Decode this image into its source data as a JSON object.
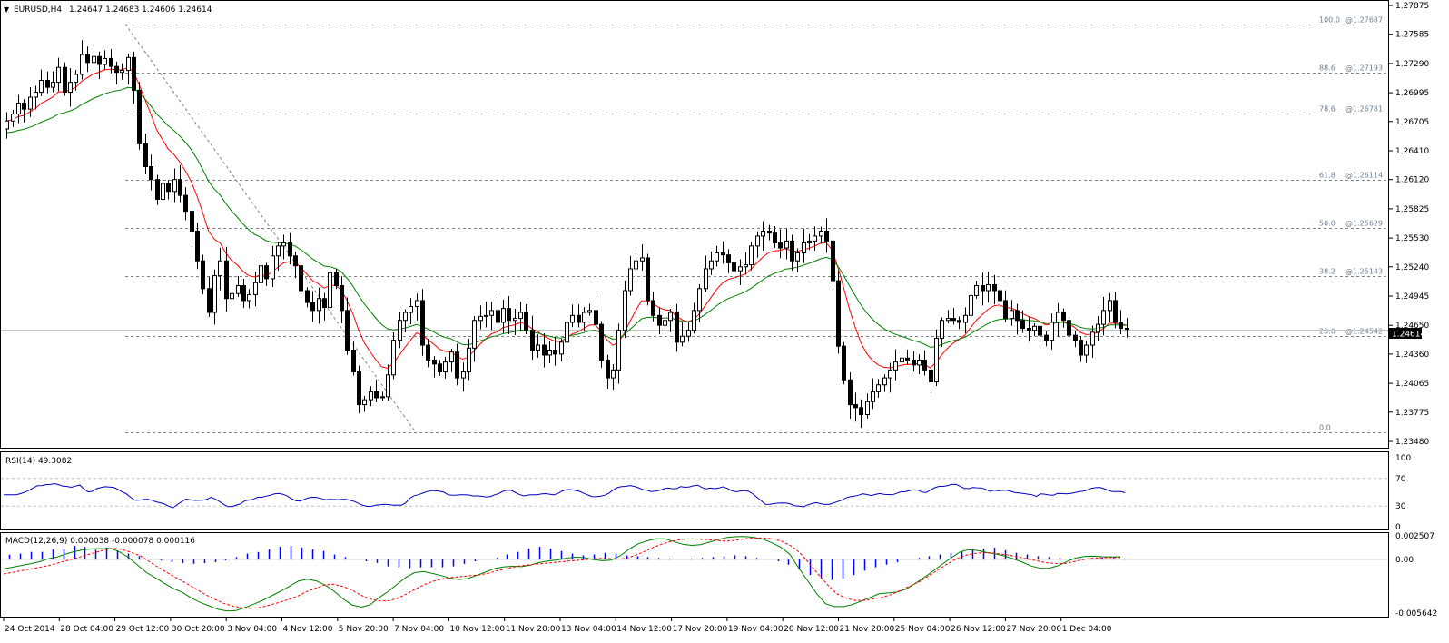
{
  "header": {
    "symbol": "EURUSD,H4",
    "ohlc": "1.24647 1.24683 1.24606 1.24614"
  },
  "current_price": "1.24614",
  "colors": {
    "bull_body": "#ffffff",
    "bear_body": "#000000",
    "ma_fast": "#ff0000",
    "ma_slow": "#008000",
    "ma_highlight": "#ffff00",
    "rsi_line": "#0000c0",
    "macd_hist": "#0000ff",
    "macd_line": "#008000",
    "macd_signal": "#ff0000",
    "fib_line": "#808080",
    "price_tag_bg": "#000000",
    "price_tag_text": "#ffffff"
  },
  "chart_data": [
    {
      "type": "candlestick",
      "name": "price",
      "y_ticks": [
        "1.27875",
        "1.27585",
        "1.27290",
        "1.26995",
        "1.26705",
        "1.26410",
        "1.26120",
        "1.25825",
        "1.25530",
        "1.25240",
        "1.24945",
        "1.24650",
        "1.24360",
        "1.24065",
        "1.23775",
        "1.23480"
      ],
      "ylim": [
        1.2348,
        1.27875
      ],
      "x_ticks": [
        "24 Oct 2014",
        "28 Oct 04:00",
        "29 Oct 12:00",
        "30 Oct 20:00",
        "3 Nov 04:00",
        "4 Nov 12:00",
        "5 Nov 20:00",
        "7 Nov 04:00",
        "10 Nov 12:00",
        "11 Nov 20:00",
        "13 Nov 04:00",
        "14 Nov 12:00",
        "17 Nov 20:00",
        "19 Nov 04:00",
        "20 Nov 12:00",
        "21 Nov 20:00",
        "25 Nov 04:00",
        "26 Nov 12:00",
        "27 Nov 20:00",
        "1 Dec 04:00"
      ],
      "close": [
        1.2671,
        1.2678,
        1.2689,
        1.2683,
        1.2695,
        1.27,
        1.2712,
        1.2705,
        1.271,
        1.2725,
        1.27,
        1.271,
        1.2718,
        1.2738,
        1.273,
        1.2736,
        1.2728,
        1.2734,
        1.2726,
        1.272,
        1.2722,
        1.2735,
        1.2702,
        1.2648,
        1.2625,
        1.2612,
        1.2592,
        1.2608,
        1.26,
        1.2612,
        1.2596,
        1.258,
        1.256,
        1.253,
        1.2502,
        1.2478,
        1.2515,
        1.253,
        1.2492,
        1.2497,
        1.2505,
        1.249,
        1.2496,
        1.2508,
        1.2525,
        1.2512,
        1.2535,
        1.2545,
        1.2548,
        1.2535,
        1.2525,
        1.25,
        1.2488,
        1.248,
        1.2492,
        1.2483,
        1.2518,
        1.2505,
        1.248,
        1.244,
        1.2418,
        1.2385,
        1.239,
        1.2398,
        1.2392,
        1.2393,
        1.2415,
        1.245,
        1.247,
        1.2478,
        1.2484,
        1.249,
        1.2445,
        1.243,
        1.2426,
        1.2418,
        1.2428,
        1.2438,
        1.2412,
        1.2418,
        1.2442,
        1.247,
        1.2474,
        1.2475,
        1.248,
        1.2468,
        1.2482,
        1.247,
        1.2472,
        1.2478,
        1.246,
        1.244,
        1.2445,
        1.2435,
        1.244,
        1.2436,
        1.2448,
        1.2468,
        1.2475,
        1.2468,
        1.2478,
        1.248,
        1.2466,
        1.243,
        1.2412,
        1.242,
        1.246,
        1.25,
        1.2522,
        1.253,
        1.2533,
        1.249,
        1.2475,
        1.2465,
        1.247,
        1.2478,
        1.2448,
        1.2454,
        1.246,
        1.248,
        1.2502,
        1.2522,
        1.253,
        1.2538,
        1.2536,
        1.2528,
        1.252,
        1.2524,
        1.2526,
        1.2545,
        1.2555,
        1.256,
        1.2558,
        1.2548,
        1.2543,
        1.255,
        1.253,
        1.2538,
        1.2548,
        1.255,
        1.2555,
        1.256,
        1.255,
        1.251,
        1.2444,
        1.241,
        1.2385,
        1.2382,
        1.2375,
        1.2388,
        1.2398,
        1.2405,
        1.2412,
        1.242,
        1.2428,
        1.2432,
        1.243,
        1.2425,
        1.243,
        1.242,
        1.2408,
        1.2452,
        1.247,
        1.2472,
        1.247,
        1.2468,
        1.2475,
        1.2495,
        1.2505,
        1.25,
        1.2506,
        1.25,
        1.249,
        1.2472,
        1.248,
        1.247,
        1.2462,
        1.246,
        1.2464,
        1.2455,
        1.245,
        1.2468,
        1.2478,
        1.247,
        1.2455,
        1.245,
        1.2435,
        1.2445,
        1.2458,
        1.2466,
        1.248,
        1.249,
        1.2468,
        1.2462,
        1.2461
      ],
      "price_levels": {
        "current": 1.24614,
        "hline": 1.2461
      }
    },
    {
      "type": "line",
      "name": "fibonacci",
      "levels": [
        {
          "label": "100.0",
          "price_label": "@1.27687",
          "value": 1.27687
        },
        {
          "label": "88.6",
          "price_label": "@1.27193",
          "value": 1.27193
        },
        {
          "label": "78.6",
          "price_label": "@1.26781",
          "value": 1.26781
        },
        {
          "label": "61.8",
          "price_label": "@1.26114",
          "value": 1.26114
        },
        {
          "label": "50.0",
          "price_label": "@1.25629",
          "value": 1.25629
        },
        {
          "label": "38.2",
          "price_label": "@1.25143",
          "value": 1.25143
        },
        {
          "label": "23.6",
          "price_label": "@1.24542",
          "value": 1.24542
        },
        {
          "label": "0.0",
          "price_label": "",
          "value": 1.2357
        }
      ]
    },
    {
      "type": "line",
      "name": "RSI(14)",
      "label": "RSI(14) 49.3082",
      "ylim": [
        0,
        100
      ],
      "levels": [
        30,
        70
      ],
      "y_ticks": [
        "100",
        "70",
        "30",
        "0"
      ],
      "values": [
        46.3,
        46.3,
        46.3,
        46.5,
        48.0,
        50.1,
        52.9,
        56.3,
        59.5,
        59.7,
        61.1,
        61.3,
        62.5,
        61.0,
        58.8,
        58.4,
        57.2,
        58.9,
        60.4,
        54.8,
        50.5,
        51.4,
        55.3,
        56.8,
        58.0,
        57.6,
        57.1,
        54.2,
        50.7,
        47.8,
        42.8,
        38.6,
        38.6,
        39.5,
        40.0,
        38.4,
        36.2,
        34.8,
        33.0,
        29.9,
        27.5,
        32.1,
        36.1,
        40.1,
        39.2,
        38.3,
        38.3,
        38.5,
        39.8,
        42.8,
        40.2,
        36.6,
        32.5,
        29.2,
        29.4,
        31.4,
        33.3,
        37.6,
        38.8,
        39.9,
        42.8,
        42.7,
        44.3,
        45.6,
        47.6,
        48.3,
        47.1,
        44.6,
        40.8,
        37.9,
        37.3,
        39.5,
        42.0,
        42.7,
        42.4,
        41.0,
        39.1,
        39.7,
        39.6,
        39.3,
        39.8,
        39.6,
        38.2,
        36.5,
        33.3,
        30.9,
        29.5,
        29.9,
        31.4,
        31.8,
        32.6,
        32.2,
        31.3,
        31.5,
        31.2,
        34.8,
        41.4,
        45.0,
        46.4,
        48.7,
        50.9,
        52.5,
        52.1,
        51.5,
        50.1,
        46.5,
        45.8,
        45.9,
        46.3,
        46.3,
        46.0,
        44.6,
        44.9,
        44.1,
        43.3,
        43.8,
        46.3,
        48.2,
        51.5,
        53.0,
        52.6,
        49.3,
        46.4,
        44.8,
        46.0,
        46.5,
        46.4,
        47.5,
        48.0,
        47.3,
        46.2,
        48.4,
        51.9,
        53.8,
        54.0,
        52.6,
        51.4,
        48.8,
        46.2,
        43.8,
        43.5,
        44.2,
        45.6,
        48.5,
        53.1,
        56.7,
        58.1,
        58.5,
        59.7,
        58.6,
        56.6,
        53.9,
        52.9,
        51.0,
        51.6,
        52.8,
        55.1,
        56.3,
        55.1,
        55.4,
        58.1,
        57.2,
        57.7,
        59.4,
        60.4,
        56.9,
        55.0,
        56.0,
        55.3,
        56.2,
        57.9,
        55.6,
        52.2,
        50.7,
        51.6,
        52.5,
        51.3,
        47.9,
        42.6,
        37.9,
        32.4,
        32.6,
        33.5,
        34.3,
        34.5,
        34.3,
        32.9,
        30.4,
        29.9,
        29.0,
        31.9,
        33.7,
        35.0,
        33.6,
        32.4,
        32.4,
        34.4,
        36.5,
        38.4,
        41.9,
        43.5,
        44.4,
        45.8,
        47.7,
        46.7,
        45.3,
        46.8,
        48.1,
        47.0,
        46.7,
        46.3,
        48.4,
        50.6,
        50.8,
        52.5,
        53.7,
        53.0,
        50.3,
        49.7,
        53.4,
        56.6,
        58.5,
        58.5,
        59.6,
        61.3,
        61.4,
        58.7,
        55.8,
        55.3,
        56.8,
        56.5,
        56.3,
        54.3,
        51.3,
        52.9,
        52.1,
        52.8,
        52.7,
        51.5,
        49.4,
        49.1,
        48.1,
        47.2,
        46.5,
        44.0,
        47.8,
        47.3,
        46.1,
        45.7,
        48.3,
        48.2,
        47.7,
        48.1,
        49.3,
        50.8,
        51.5,
        53.2,
        55.7,
        56.7,
        57.1,
        55.3,
        52.7,
        51.1,
        51.1,
        50.9,
        49.4
      ]
    },
    {
      "type": "bar",
      "name": "MACD(12,26,9)",
      "label": "MACD(12,26,9) 0.000038 -0.000078 0.000116",
      "ylim": [
        -0.005642,
        0.002507
      ],
      "y_ticks": [
        "0.002507",
        "0.00",
        "-0.005642"
      ],
      "histogram": [
        0.00052,
        0.00063,
        0.00081,
        0.00081,
        0.00108,
        0.00108,
        0.00144,
        0.00134,
        0.00105,
        0.00126,
        0.00099,
        0.00063,
        0.00036,
        9e-05,
        -9e-05,
        -0.00027,
        -0.00036,
        -0.00045,
        -0.00038,
        -0.00027,
        -9e-05,
        0.00027,
        0.00063,
        0.0008,
        0.00108,
        0.00135,
        0.00144,
        0.00126,
        0.00108,
        0.0009,
        0.00054,
        0.00027,
        0.0,
        -0.00018,
        -0.00035,
        -0.00072,
        -0.00081,
        -0.0009,
        -0.00081,
        -0.0008,
        -0.00081,
        -0.00072,
        -0.00045,
        -0.00018,
        0.0,
        0.00018,
        0.00054,
        0.00081,
        0.00117,
        0.00135,
        0.00117,
        0.0009,
        0.00063,
        0.00045,
        0.00054,
        0.00072,
        0.00063,
        0.00045,
        0.00036,
        0.00027,
        0.00018,
        9e-05,
        0.0,
        9e-05,
        0.00018,
        0.00027,
        0.00036,
        0.00045,
        0.00036,
        0.00018,
        0.0,
        -0.00018,
        -0.00054,
        -0.00108,
        -0.00162,
        -0.00198,
        -0.00216,
        -0.00198,
        -0.00162,
        -0.00117,
        -0.00081,
        -0.00054,
        -0.00027,
        0.0,
        0.00018,
        0.00036,
        0.00054,
        0.00072,
        0.0009,
        0.00108,
        0.00117,
        0.00126,
        0.00099,
        0.00072,
        0.00054,
        0.00036,
        0.00027,
        0.00018,
        9e-05,
        9e-05,
        9e-05,
        0.00018,
        0.00018,
        9e-05
      ],
      "macd": [
        -0.00098,
        -0.0008,
        -0.00062,
        -0.00044,
        -0.00023,
        9e-05,
        0.00027,
        0.0006,
        0.00087,
        0.00105,
        0.00114,
        0.00116,
        0.00117,
        0.0008,
        0.00021,
        -0.00058,
        -0.00138,
        -0.00193,
        -0.00251,
        -0.00305,
        -0.00346,
        -0.00405,
        -0.00452,
        -0.00488,
        -0.00525,
        -0.00543,
        -0.00538,
        -0.00507,
        -0.0047,
        -0.0043,
        -0.00382,
        -0.00334,
        -0.0028,
        -0.00226,
        -0.00207,
        -0.00225,
        -0.0027,
        -0.00334,
        -0.00416,
        -0.00479,
        -0.00502,
        -0.00478,
        -0.00403,
        -0.00339,
        -0.00263,
        -0.00188,
        -0.00137,
        -0.00127,
        -0.00146,
        -0.00169,
        -0.00196,
        -0.0021,
        -0.00199,
        -0.00164,
        -0.00129,
        -0.00093,
        -0.00076,
        -0.0007,
        -0.00074,
        -0.00057,
        -0.0003,
        -0.00014,
        -3e-05,
        0.00016,
        0.00025,
        0.00021,
        0.0,
        -0.00012,
        -6e-05,
        0.0004,
        0.0011,
        0.00165,
        0.00197,
        0.00219,
        0.00219,
        0.0019,
        0.00162,
        0.0015,
        0.00158,
        0.00185,
        0.00212,
        0.00234,
        0.00242,
        0.00243,
        0.00234,
        0.00214,
        0.00177,
        0.0013,
        0.00055,
        -0.0009,
        -0.00225,
        -0.0036,
        -0.00466,
        -0.00496,
        -0.00496,
        -0.00474,
        -0.00438,
        -0.00399,
        -0.00361,
        -0.00352,
        -0.00343,
        -0.00312,
        -0.00255,
        -0.00189,
        -0.00123,
        -0.00052,
        0.00015,
        0.00078,
        0.00105,
        0.00096,
        0.00075,
        0.0006,
        0.00039,
        7e-05,
        -0.00026,
        -0.00068,
        -0.00092,
        -0.00091,
        -0.00065,
        -0.00021,
        0.00017,
        0.00034,
        0.00036,
        0.0003,
        0.00029,
        0.00029
      ],
      "signal": [
        -0.00152,
        -0.00134,
        -0.00116,
        -0.00098,
        -0.0008,
        -0.00062,
        -0.00035,
        -8e-05,
        0.00017,
        0.00047,
        0.00074,
        0.00101,
        0.00119,
        0.00105,
        0.00074,
        0.00038,
        -0.00026,
        -0.00088,
        -0.00145,
        -0.00199,
        -0.00253,
        -0.00308,
        -0.00368,
        -0.00415,
        -0.00461,
        -0.00488,
        -0.00509,
        -0.00515,
        -0.00506,
        -0.00482,
        -0.00455,
        -0.00425,
        -0.00392,
        -0.00343,
        -0.00305,
        -0.0027,
        -0.0026,
        -0.00281,
        -0.00319,
        -0.00373,
        -0.00416,
        -0.00436,
        -0.00437,
        -0.0041,
        -0.00364,
        -0.0031,
        -0.00263,
        -0.00227,
        -0.00203,
        -0.00188,
        -0.00179,
        -0.0017,
        -0.00161,
        -0.00143,
        -0.00116,
        -0.00095,
        -0.00073,
        -0.00059,
        -0.00049,
        -0.00041,
        -0.00032,
        -0.00022,
        -0.00014,
        -5e-05,
        4e-05,
        0.00013,
        0.00012,
        4e-05,
        0.00013,
        0.00045,
        0.00085,
        0.0013,
        0.00166,
        0.00193,
        0.00211,
        0.0022,
        0.00215,
        0.0021,
        0.00201,
        0.00193,
        0.00206,
        0.00219,
        0.00228,
        0.00229,
        0.00219,
        0.00193,
        0.00146,
        0.00072,
        -0.00037,
        -0.00155,
        -0.00263,
        -0.00359,
        -0.00405,
        -0.00431,
        -0.00431,
        -0.00415,
        -0.00399,
        -0.00368,
        -0.00324,
        -0.0028,
        -0.00236,
        -0.00176,
        -0.00115,
        -0.0005,
        2e-05,
        0.00043,
        0.00064,
        0.00073,
        0.00069,
        0.00058,
        0.00045,
        0.00024,
        4e-05,
        -0.00015,
        -0.00034,
        -0.00041,
        -0.00041,
        -0.00021,
        1e-05,
        0.00015,
        0.00019,
        0.00022,
        0.00022
      ]
    }
  ]
}
